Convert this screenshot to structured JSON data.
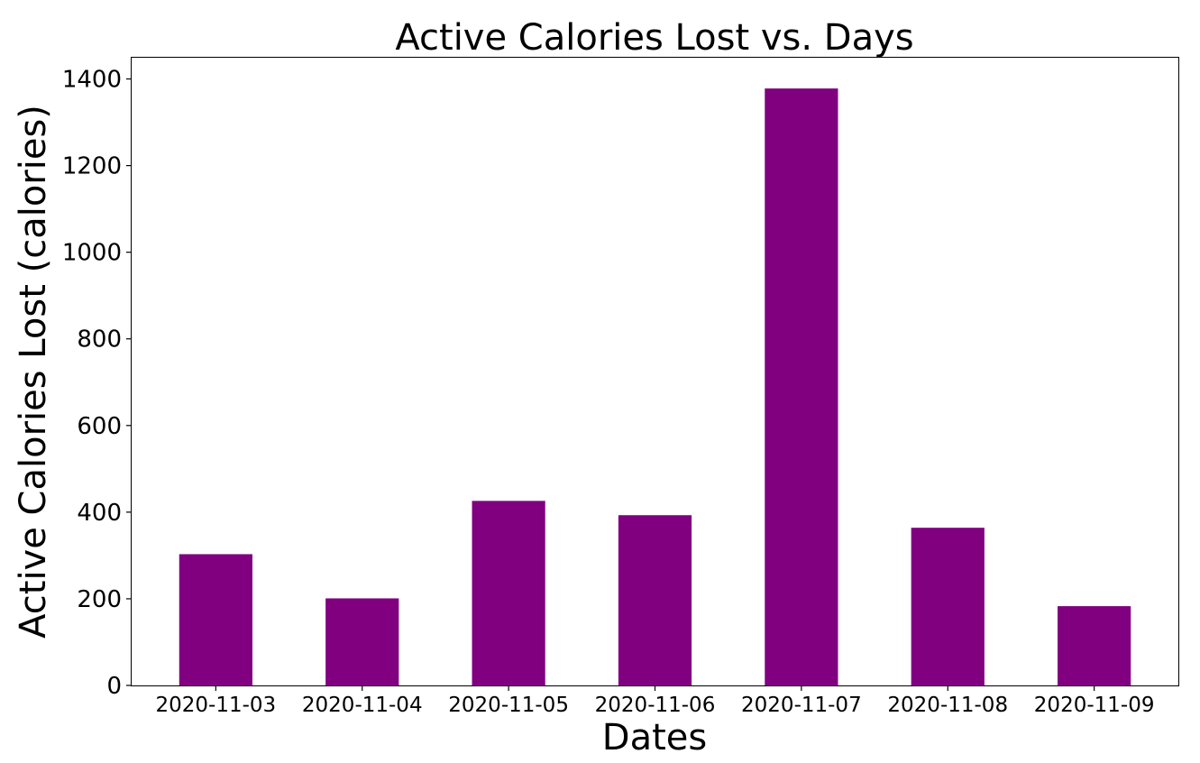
{
  "chart_data": {
    "type": "bar",
    "title": "Active Calories Lost  vs. Days",
    "xlabel": "Dates",
    "ylabel": "Active Calories Lost (calories)",
    "categories": [
      "2020-11-03",
      "2020-11-04",
      "2020-11-05",
      "2020-11-06",
      "2020-11-07",
      "2020-11-08",
      "2020-11-09"
    ],
    "values": [
      303,
      201,
      426,
      393,
      1378,
      364,
      183
    ],
    "ylim": [
      0,
      1449
    ],
    "yticks": [
      0,
      200,
      400,
      600,
      800,
      1000,
      1200,
      1400
    ],
    "bar_color": "#800080",
    "grid": false,
    "legend": "none"
  }
}
